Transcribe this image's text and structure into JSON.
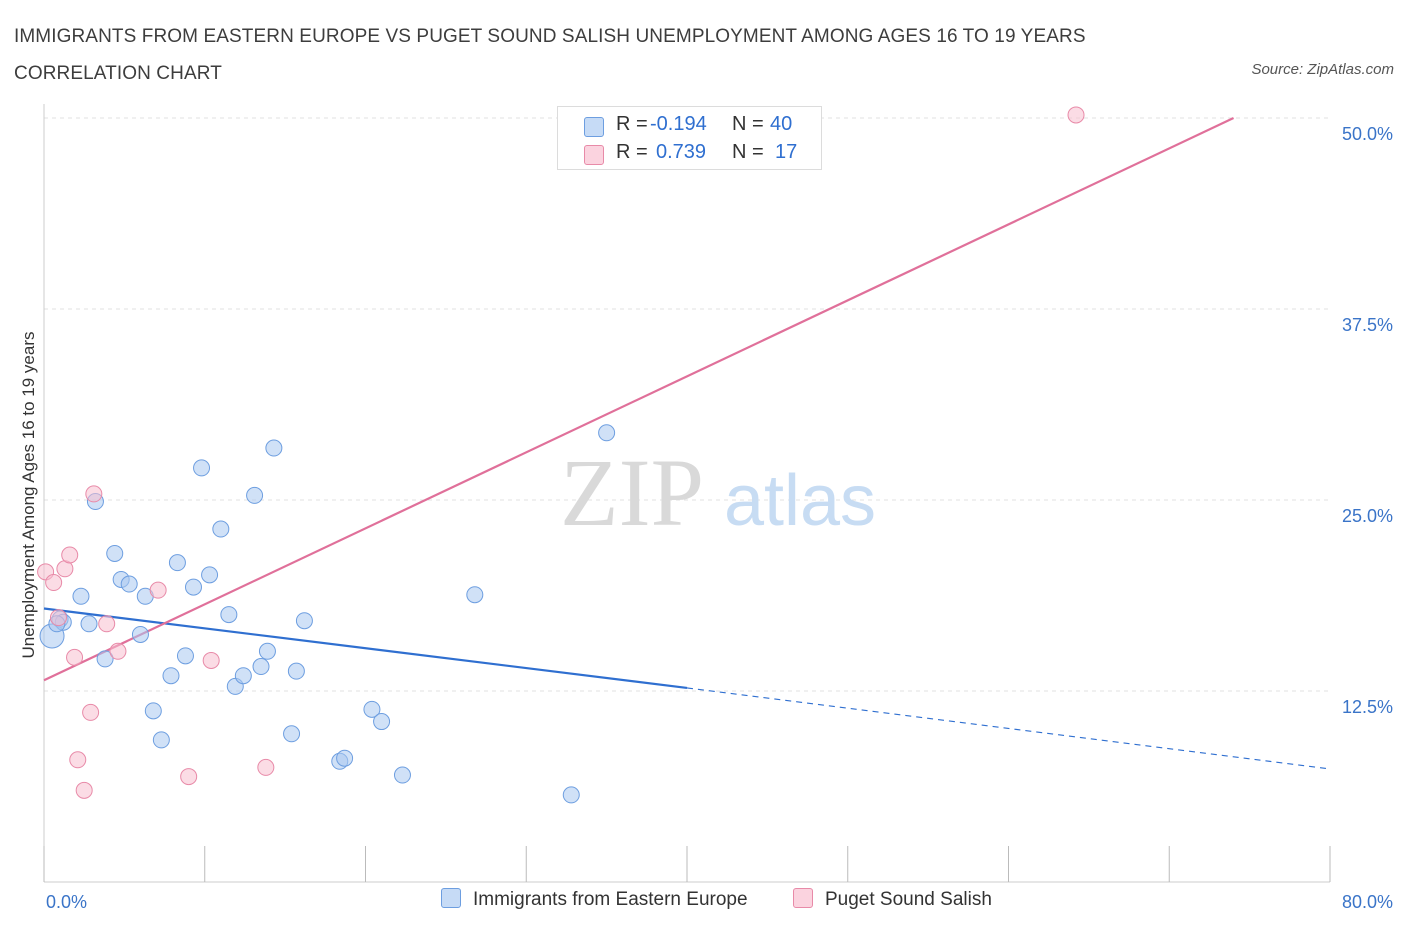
{
  "title": "IMMIGRANTS FROM EASTERN EUROPE VS PUGET SOUND SALISH UNEMPLOYMENT AMONG AGES 16 TO 19 YEARS CORRELATION CHART",
  "source": "Source: ZipAtlas.com",
  "watermark": {
    "zip": "ZIP",
    "atlas": "atlas"
  },
  "colors": {
    "blue_fill": "#aac8f0",
    "blue_stroke": "#6d9ee0",
    "blue_line": "#2f6fd0",
    "pink_fill": "#f7bfd0",
    "pink_stroke": "#e88aa8",
    "pink_line": "#e0709a",
    "tick_text": "#3a74c8",
    "grid": "#e2e2e2"
  },
  "legend": {
    "rows": [
      {
        "r_label": "R =",
        "r_value": "-0.194",
        "n_label": "N =",
        "n_value": "40"
      },
      {
        "r_label": "R =",
        "r_value": "0.739",
        "n_label": "N =",
        "n_value": "17"
      }
    ]
  },
  "bottom_legend": [
    "Immigrants from Eastern Europe",
    "Puget Sound Salish"
  ],
  "chart_data": {
    "type": "scatter",
    "title": "IMMIGRANTS FROM EASTERN EUROPE VS PUGET SOUND SALISH UNEMPLOYMENT AMONG AGES 16 TO 19 YEARS CORRELATION CHART",
    "xlabel": "",
    "ylabel": "Unemployment Among Ages 16 to 19 years",
    "xlim": [
      0,
      80
    ],
    "ylim": [
      0,
      50
    ],
    "x_tick_labels": [
      "0.0%",
      "80.0%"
    ],
    "y_ticks": [
      12.5,
      25.0,
      37.5,
      50.0
    ],
    "y_tick_labels": [
      "12.5%",
      "25.0%",
      "37.5%",
      "50.0%"
    ],
    "grid": true,
    "series": [
      {
        "name": "Immigrants from Eastern Europe",
        "color": "blue",
        "points": [
          [
            0.5,
            16.1
          ],
          [
            1.0,
            17.2
          ],
          [
            1.2,
            17.0
          ],
          [
            2.3,
            18.7
          ],
          [
            2.8,
            16.9
          ],
          [
            3.2,
            24.9
          ],
          [
            3.8,
            14.6
          ],
          [
            4.4,
            21.5
          ],
          [
            4.8,
            19.8
          ],
          [
            5.3,
            19.5
          ],
          [
            6.0,
            16.2
          ],
          [
            6.3,
            18.7
          ],
          [
            6.8,
            11.2
          ],
          [
            7.3,
            9.3
          ],
          [
            7.9,
            13.5
          ],
          [
            8.3,
            20.9
          ],
          [
            8.8,
            14.8
          ],
          [
            9.3,
            19.3
          ],
          [
            9.8,
            27.1
          ],
          [
            10.3,
            20.1
          ],
          [
            11.0,
            23.1
          ],
          [
            11.5,
            17.5
          ],
          [
            11.9,
            12.8
          ],
          [
            12.4,
            13.5
          ],
          [
            13.1,
            25.3
          ],
          [
            13.5,
            14.1
          ],
          [
            13.9,
            15.1
          ],
          [
            14.3,
            28.4
          ],
          [
            15.4,
            9.7
          ],
          [
            16.2,
            17.1
          ],
          [
            18.4,
            7.9
          ],
          [
            18.7,
            8.1
          ],
          [
            20.4,
            11.3
          ],
          [
            21.0,
            10.5
          ],
          [
            22.3,
            7.0
          ],
          [
            26.8,
            18.8
          ],
          [
            32.8,
            5.7
          ],
          [
            35.0,
            29.4
          ],
          [
            15.7,
            13.8
          ],
          [
            0.8,
            16.9
          ]
        ]
      },
      {
        "name": "Puget Sound Salish",
        "color": "pink",
        "points": [
          [
            0.1,
            20.3
          ],
          [
            0.6,
            19.6
          ],
          [
            0.9,
            17.3
          ],
          [
            1.3,
            20.5
          ],
          [
            1.6,
            21.4
          ],
          [
            1.9,
            14.7
          ],
          [
            2.1,
            8.0
          ],
          [
            2.5,
            6.0
          ],
          [
            2.9,
            11.1
          ],
          [
            3.1,
            25.4
          ],
          [
            3.9,
            16.9
          ],
          [
            4.6,
            15.1
          ],
          [
            7.1,
            19.1
          ],
          [
            9.0,
            6.9
          ],
          [
            10.4,
            14.5
          ],
          [
            13.8,
            7.5
          ],
          [
            64.2,
            50.2
          ]
        ]
      }
    ],
    "trend_lines": [
      {
        "series": "Immigrants from Eastern Europe",
        "x": [
          0,
          40
        ],
        "y": [
          17.9,
          12.7
        ],
        "dashed_extension_to_x": 80,
        "dashed_end_y": 7.4
      },
      {
        "series": "Puget Sound Salish",
        "x": [
          0,
          74
        ],
        "y": [
          13.2,
          50.0
        ]
      }
    ]
  }
}
